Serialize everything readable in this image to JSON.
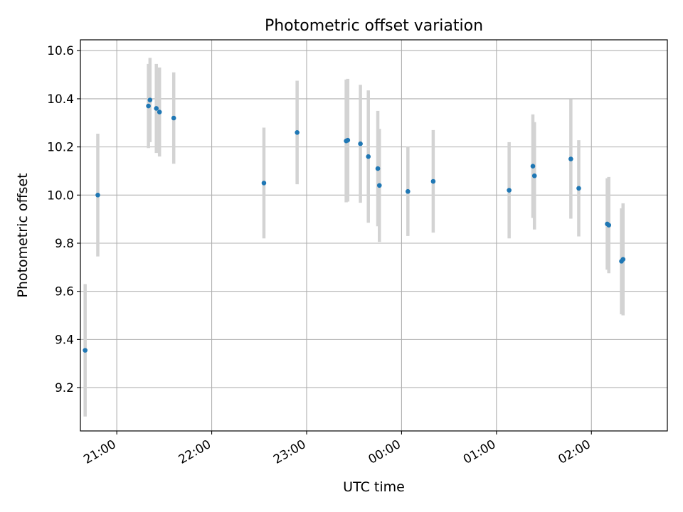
{
  "chart_data": {
    "type": "scatter",
    "title": "Photometric offset variation",
    "xlabel": "UTC time",
    "ylabel": "Photometric offset",
    "x_axis": "time (hh:mm UTC, spanning midnight)",
    "xlim": [
      "20:37",
      "02:48"
    ],
    "ylim": [
      9.02,
      10.645
    ],
    "grid": true,
    "legend": "none",
    "x_ticks": [
      "21:00",
      "22:00",
      "23:00",
      "00:00",
      "01:00",
      "02:00"
    ],
    "y_ticks": [
      "9.2",
      "9.4",
      "9.6",
      "9.8",
      "10.0",
      "10.2",
      "10.4",
      "10.6"
    ],
    "series": [
      {
        "color": "#1f77b4",
        "errorbar_color": "#d3d3d3",
        "points": [
          {
            "x": "20:40",
            "y": 9.355,
            "err": 0.275
          },
          {
            "x": "20:48",
            "y": 10.0,
            "err": 0.255
          },
          {
            "x": "21:20",
            "y": 10.37,
            "err": 0.175
          },
          {
            "x": "21:21",
            "y": 10.395,
            "err": 0.175
          },
          {
            "x": "21:25",
            "y": 10.36,
            "err": 0.185
          },
          {
            "x": "21:27",
            "y": 10.345,
            "err": 0.185
          },
          {
            "x": "21:36",
            "y": 10.32,
            "err": 0.19
          },
          {
            "x": "22:33",
            "y": 10.05,
            "err": 0.23
          },
          {
            "x": "22:54",
            "y": 10.26,
            "err": 0.215
          },
          {
            "x": "23:25",
            "y": 10.225,
            "err": 0.255
          },
          {
            "x": "23:26",
            "y": 10.228,
            "err": 0.255
          },
          {
            "x": "23:34",
            "y": 10.213,
            "err": 0.245
          },
          {
            "x": "23:39",
            "y": 10.16,
            "err": 0.275
          },
          {
            "x": "23:45",
            "y": 10.11,
            "err": 0.24
          },
          {
            "x": "23:46",
            "y": 10.04,
            "err": 0.235
          },
          {
            "x": "00:04",
            "y": 10.015,
            "err": 0.185
          },
          {
            "x": "00:20",
            "y": 10.057,
            "err": 0.213
          },
          {
            "x": "01:08",
            "y": 10.02,
            "err": 0.2
          },
          {
            "x": "01:23",
            "y": 10.12,
            "err": 0.215
          },
          {
            "x": "01:24",
            "y": 10.08,
            "err": 0.223
          },
          {
            "x": "01:47",
            "y": 10.15,
            "err": 0.248
          },
          {
            "x": "01:52",
            "y": 10.028,
            "err": 0.2
          },
          {
            "x": "02:10",
            "y": 9.88,
            "err": 0.19
          },
          {
            "x": "02:11",
            "y": 9.875,
            "err": 0.2
          },
          {
            "x": "02:19",
            "y": 9.725,
            "err": 0.22
          },
          {
            "x": "02:20",
            "y": 9.733,
            "err": 0.233
          }
        ]
      }
    ]
  }
}
